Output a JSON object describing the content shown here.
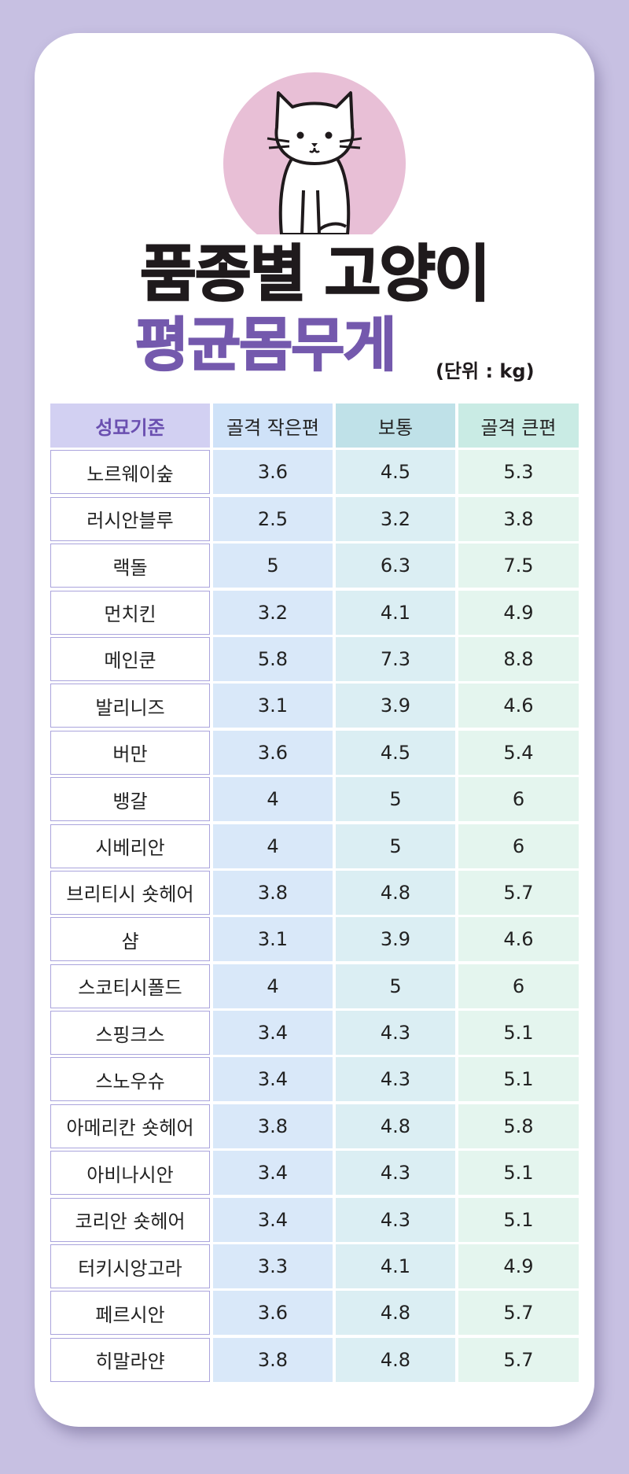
{
  "title": {
    "line1": "품종별 고양이",
    "line2": "평균몸무게",
    "unit": "(단위 : kg)"
  },
  "colors": {
    "background": "#c7c0e2",
    "accent_purple": "#7459ad",
    "title_dark": "#1f1a1c",
    "circle_pink": "#e8bfd6"
  },
  "illustration": {
    "icon": "cat-icon"
  },
  "table": {
    "headers": [
      "성묘기준",
      "골격 작은편",
      "보통",
      "골격 큰편"
    ],
    "rows": [
      [
        "노르웨이숲",
        "3.6",
        "4.5",
        "5.3"
      ],
      [
        "러시안블루",
        "2.5",
        "3.2",
        "3.8"
      ],
      [
        "랙돌",
        "5",
        "6.3",
        "7.5"
      ],
      [
        "먼치킨",
        "3.2",
        "4.1",
        "4.9"
      ],
      [
        "메인쿤",
        "5.8",
        "7.3",
        "8.8"
      ],
      [
        "발리니즈",
        "3.1",
        "3.9",
        "4.6"
      ],
      [
        "버만",
        "3.6",
        "4.5",
        "5.4"
      ],
      [
        "뱅갈",
        "4",
        "5",
        "6"
      ],
      [
        "시베리안",
        "4",
        "5",
        "6"
      ],
      [
        "브리티시 숏헤어",
        "3.8",
        "4.8",
        "5.7"
      ],
      [
        "샴",
        "3.1",
        "3.9",
        "4.6"
      ],
      [
        "스코티시폴드",
        "4",
        "5",
        "6"
      ],
      [
        "스핑크스",
        "3.4",
        "4.3",
        "5.1"
      ],
      [
        "스노우슈",
        "3.4",
        "4.3",
        "5.1"
      ],
      [
        "아메리칸 숏헤어",
        "3.8",
        "4.8",
        "5.8"
      ],
      [
        "아비나시안",
        "3.4",
        "4.3",
        "5.1"
      ],
      [
        "코리안 숏헤어",
        "3.4",
        "4.3",
        "5.1"
      ],
      [
        "터키시앙고라",
        "3.3",
        "4.1",
        "4.9"
      ],
      [
        "페르시안",
        "3.6",
        "4.8",
        "5.7"
      ],
      [
        "히말라얀",
        "3.8",
        "4.8",
        "5.7"
      ]
    ]
  }
}
